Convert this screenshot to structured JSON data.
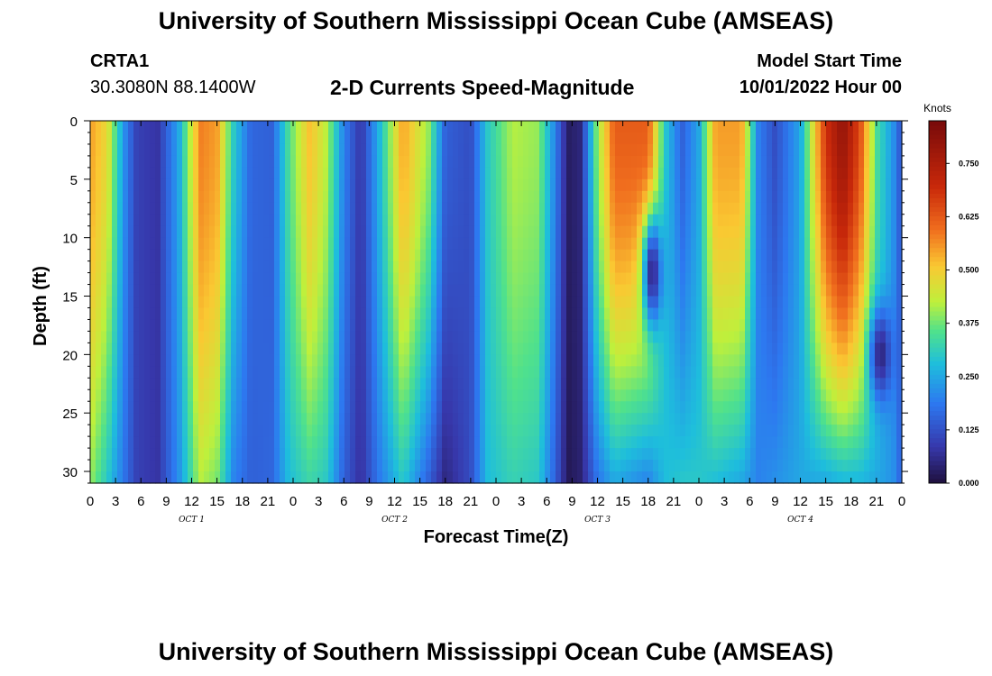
{
  "header": {
    "title": "University of Southern Mississippi Ocean Cube (AMSEAS)",
    "station": "CRTA1",
    "location": "30.3080N  88.1400W",
    "subtitle": "2-D Currents Speed-Magnitude",
    "model_start_label": "Model Start Time",
    "model_start_value": "10/01/2022 Hour 00"
  },
  "footer": {
    "title": "University of Southern Mississippi Ocean Cube (AMSEAS)"
  },
  "chart_data": {
    "type": "heatmap",
    "title": "2-D Currents Speed-Magnitude",
    "xlabel": "Forecast Time(Z)",
    "ylabel": "Depth (ft)",
    "x_ticks": [
      "0",
      "3",
      "6",
      "9",
      "12",
      "15",
      "18",
      "21",
      "0",
      "3",
      "6",
      "9",
      "12",
      "15",
      "18",
      "21",
      "0",
      "3",
      "6",
      "9",
      "12",
      "15",
      "18",
      "21",
      "0",
      "3",
      "6",
      "9",
      "12",
      "15",
      "18",
      "21",
      "0"
    ],
    "x_range_hours": [
      0,
      96
    ],
    "day_labels": [
      {
        "label": "OCT 1",
        "hour": 12
      },
      {
        "label": "OCT 2",
        "hour": 36
      },
      {
        "label": "OCT 3",
        "hour": 60
      },
      {
        "label": "OCT 4",
        "hour": 84
      }
    ],
    "y_ticks": [
      0,
      5,
      10,
      15,
      20,
      25,
      30
    ],
    "y_range_ft": [
      0,
      31
    ],
    "colorbar": {
      "unit": "Knots",
      "range": [
        0,
        0.85
      ],
      "ticks": [
        "0.000",
        "0.125",
        "0.250",
        "0.375",
        "0.500",
        "0.625",
        "0.750"
      ]
    },
    "surface_speed_profile_knots": [
      {
        "hour": 0,
        "value": 0.55
      },
      {
        "hour": 2,
        "value": 0.48
      },
      {
        "hour": 4,
        "value": 0.22
      },
      {
        "hour": 5.5,
        "value": 0.1
      },
      {
        "hour": 8,
        "value": 0.08
      },
      {
        "hour": 10.5,
        "value": 0.25
      },
      {
        "hour": 13,
        "value": 0.58
      },
      {
        "hour": 15,
        "value": 0.55
      },
      {
        "hour": 17,
        "value": 0.3
      },
      {
        "hour": 19,
        "value": 0.16
      },
      {
        "hour": 21.5,
        "value": 0.15
      },
      {
        "hour": 23.5,
        "value": 0.35
      },
      {
        "hour": 26,
        "value": 0.52
      },
      {
        "hour": 28,
        "value": 0.42
      },
      {
        "hour": 30,
        "value": 0.2
      },
      {
        "hour": 32,
        "value": 0.08
      },
      {
        "hour": 34,
        "value": 0.25
      },
      {
        "hour": 37,
        "value": 0.55
      },
      {
        "hour": 40,
        "value": 0.4
      },
      {
        "hour": 42,
        "value": 0.15
      },
      {
        "hour": 45,
        "value": 0.12
      },
      {
        "hour": 47,
        "value": 0.3
      },
      {
        "hour": 50,
        "value": 0.42
      },
      {
        "hour": 53,
        "value": 0.4
      },
      {
        "hour": 55,
        "value": 0.2
      },
      {
        "hour": 56.5,
        "value": 0.03
      },
      {
        "hour": 58,
        "value": 0.05
      },
      {
        "hour": 60,
        "value": 0.4
      },
      {
        "hour": 62,
        "value": 0.62
      },
      {
        "hour": 66,
        "value": 0.62
      },
      {
        "hour": 68,
        "value": 0.3
      },
      {
        "hour": 70,
        "value": 0.15
      },
      {
        "hour": 72,
        "value": 0.25
      },
      {
        "hour": 74,
        "value": 0.55
      },
      {
        "hour": 77,
        "value": 0.55
      },
      {
        "hour": 79,
        "value": 0.2
      },
      {
        "hour": 81,
        "value": 0.12
      },
      {
        "hour": 84,
        "value": 0.25
      },
      {
        "hour": 87,
        "value": 0.68
      },
      {
        "hour": 89,
        "value": 0.8
      },
      {
        "hour": 91,
        "value": 0.65
      },
      {
        "hour": 93,
        "value": 0.35
      },
      {
        "hour": 95,
        "value": 0.22
      },
      {
        "hour": 96,
        "value": 0.12
      }
    ],
    "bottom_speed_profile_knots": [
      {
        "hour": 0,
        "value": 0.4
      },
      {
        "hour": 2,
        "value": 0.3
      },
      {
        "hour": 4,
        "value": 0.18
      },
      {
        "hour": 5.5,
        "value": 0.1
      },
      {
        "hour": 8,
        "value": 0.08
      },
      {
        "hour": 10.5,
        "value": 0.22
      },
      {
        "hour": 13,
        "value": 0.42
      },
      {
        "hour": 15,
        "value": 0.38
      },
      {
        "hour": 17,
        "value": 0.2
      },
      {
        "hour": 19,
        "value": 0.15
      },
      {
        "hour": 21.5,
        "value": 0.16
      },
      {
        "hour": 23.5,
        "value": 0.28
      },
      {
        "hour": 26,
        "value": 0.33
      },
      {
        "hour": 28,
        "value": 0.3
      },
      {
        "hour": 30,
        "value": 0.15
      },
      {
        "hour": 32,
        "value": 0.07
      },
      {
        "hour": 34,
        "value": 0.18
      },
      {
        "hour": 37,
        "value": 0.3
      },
      {
        "hour": 40,
        "value": 0.15
      },
      {
        "hour": 42,
        "value": 0.05
      },
      {
        "hour": 45,
        "value": 0.12
      },
      {
        "hour": 47,
        "value": 0.28
      },
      {
        "hour": 50,
        "value": 0.32
      },
      {
        "hour": 53,
        "value": 0.3
      },
      {
        "hour": 55,
        "value": 0.15
      },
      {
        "hour": 56.5,
        "value": 0.02
      },
      {
        "hour": 58,
        "value": 0.04
      },
      {
        "hour": 60,
        "value": 0.18
      },
      {
        "hour": 62,
        "value": 0.25
      },
      {
        "hour": 66,
        "value": 0.2
      },
      {
        "hour": 68,
        "value": 0.28
      },
      {
        "hour": 70,
        "value": 0.3
      },
      {
        "hour": 72,
        "value": 0.3
      },
      {
        "hour": 74,
        "value": 0.28
      },
      {
        "hour": 77,
        "value": 0.25
      },
      {
        "hour": 79,
        "value": 0.2
      },
      {
        "hour": 81,
        "value": 0.22
      },
      {
        "hour": 84,
        "value": 0.25
      },
      {
        "hour": 87,
        "value": 0.25
      },
      {
        "hour": 89,
        "value": 0.27
      },
      {
        "hour": 91,
        "value": 0.27
      },
      {
        "hour": 93,
        "value": 0.25
      },
      {
        "hour": 95,
        "value": 0.22
      },
      {
        "hour": 96,
        "value": 0.15
      }
    ],
    "low_speed_pockets": [
      {
        "hour_center": 66.5,
        "hour_width": 1.2,
        "depth_center_ft": 13,
        "depth_width_ft": 5,
        "value": 0.05
      },
      {
        "hour_center": 93.5,
        "hour_width": 1.3,
        "depth_center_ft": 20,
        "depth_width_ft": 4,
        "value": 0.05
      }
    ]
  }
}
